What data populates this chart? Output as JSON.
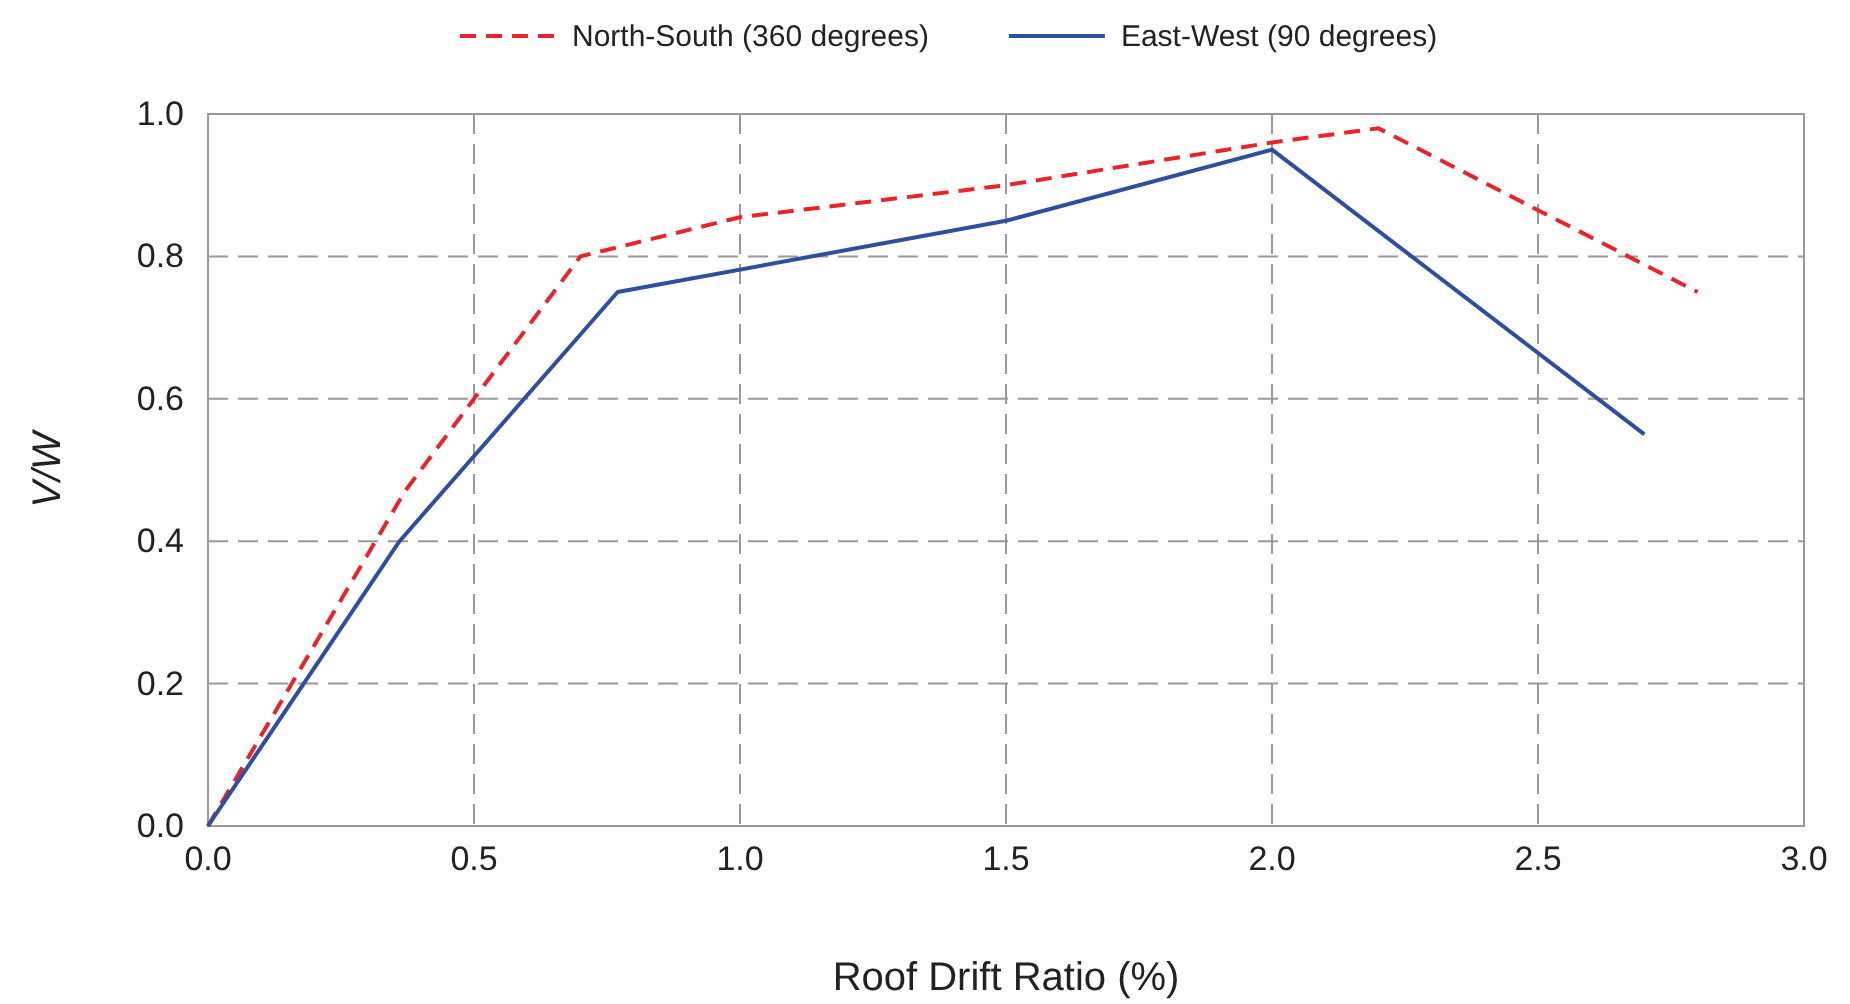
{
  "chart_data": {
    "type": "line",
    "xlabel": "Roof Drift Ratio (%)",
    "ylabel": "V/W",
    "xlim": [
      0,
      3
    ],
    "xticks": [
      {
        "value": 0,
        "label": "0.0"
      },
      {
        "value": 0.5,
        "label": "0.5"
      },
      {
        "value": 1,
        "label": "1.0"
      },
      {
        "value": 1.5,
        "label": "1.5"
      },
      {
        "value": 2,
        "label": "2.0"
      },
      {
        "value": 2.5,
        "label": "2.5"
      },
      {
        "value": 3,
        "label": "3.0"
      }
    ],
    "ylim": [
      0,
      1
    ],
    "yticks": [
      {
        "value": 0,
        "label": "0.0"
      },
      {
        "value": 0.2,
        "label": "0.2"
      },
      {
        "value": 0.4,
        "label": "0.4"
      },
      {
        "value": 0.6,
        "label": "0.6"
      },
      {
        "value": 0.8,
        "label": "0.8"
      },
      {
        "value": 1,
        "label": "1.0"
      }
    ],
    "grid": true,
    "legend": "top",
    "marker": "none",
    "series": [
      {
        "name": "North-South (360 degrees)",
        "color": "#e8232a",
        "line_style": "dashed",
        "x": [
          0,
          0.37,
          0.7,
          1.0,
          1.5,
          2.0,
          2.2,
          2.8
        ],
        "values": [
          0,
          0.47,
          0.8,
          0.855,
          0.9,
          0.96,
          0.98,
          0.75
        ]
      },
      {
        "name": "East-West (90 degrees)",
        "color": "#2e4f9e",
        "line_style": "solid",
        "x": [
          0,
          0.36,
          0.77,
          1.5,
          2.0,
          2.7
        ],
        "values": [
          0,
          0.4,
          0.75,
          0.85,
          0.95,
          0.55
        ]
      }
    ]
  }
}
